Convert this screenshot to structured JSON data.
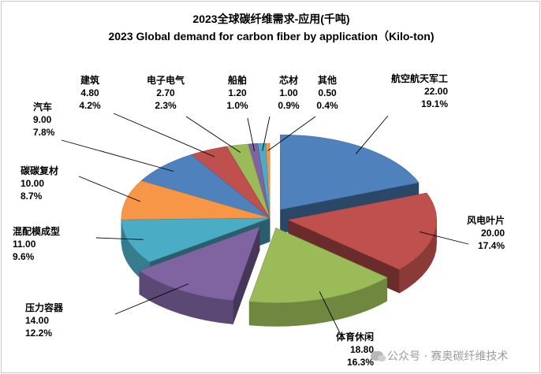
{
  "chart_data": {
    "type": "pie",
    "title": "2023全球碳纤维需求-应用(千吨)",
    "subtitle": "2023 Global demand for carbon fiber by application（Kilo-ton)",
    "slices": [
      {
        "name": "航空航天军工",
        "value": 22.0,
        "value_label": "22.00",
        "percent_label": "19.1%",
        "color": "#4f81bd",
        "exploded": true
      },
      {
        "name": "风电叶片",
        "value": 20.0,
        "value_label": "20.00",
        "percent_label": "17.4%",
        "color": "#c0504d",
        "exploded": true
      },
      {
        "name": "体育休闲",
        "value": 18.8,
        "value_label": "18.80",
        "percent_label": "16.3%",
        "color": "#9bbb59",
        "exploded": true
      },
      {
        "name": "压力容器",
        "value": 14.0,
        "value_label": "14.00",
        "percent_label": "12.2%",
        "color": "#8064a2",
        "exploded": true
      },
      {
        "name": "混配模成型",
        "value": 11.0,
        "value_label": "11.00",
        "percent_label": "9.6%",
        "color": "#4bacc6",
        "exploded": false
      },
      {
        "name": "碳碳复材",
        "value": 10.0,
        "value_label": "10.00",
        "percent_label": "8.7%",
        "color": "#f79646",
        "exploded": false
      },
      {
        "name": "汽车",
        "value": 9.0,
        "value_label": "9.00",
        "percent_label": "7.8%",
        "color": "#4f81bd",
        "exploded": false
      },
      {
        "name": "建筑",
        "value": 4.8,
        "value_label": "4.80",
        "percent_label": "4.2%",
        "color": "#c0504d",
        "exploded": false
      },
      {
        "name": "电子电气",
        "value": 2.7,
        "value_label": "2.70",
        "percent_label": "2.3%",
        "color": "#9bbb59",
        "exploded": false
      },
      {
        "name": "船舶",
        "value": 1.2,
        "value_label": "1.20",
        "percent_label": "1.0%",
        "color": "#8064a2",
        "exploded": false
      },
      {
        "name": "芯材",
        "value": 1.0,
        "value_label": "1.00",
        "percent_label": "0.9%",
        "color": "#4bacc6",
        "exploded": false
      },
      {
        "name": "其他",
        "value": 0.5,
        "value_label": "0.50",
        "percent_label": "0.4%",
        "color": "#f79646",
        "exploded": false
      }
    ]
  },
  "watermark": {
    "text": "公众号 · 赛奥碳纤维技术"
  }
}
